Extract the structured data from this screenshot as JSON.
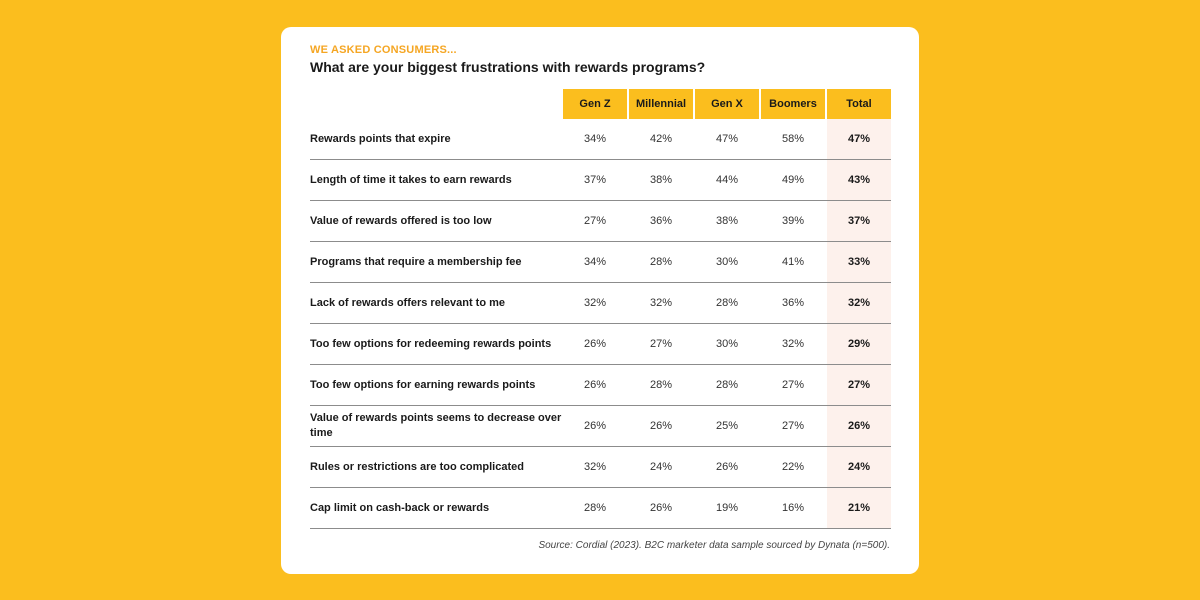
{
  "colors": {
    "background": "#FBBE1E",
    "header_fill": "#FBBE1E",
    "eyebrow": "#F5A623",
    "total_column_fill": "#FDF1EC"
  },
  "card": {
    "eyebrow": "WE ASKED CONSUMERS...",
    "headline": "What are your biggest frustrations with rewards programs?",
    "source": "Source: Cordial (2023). B2C marketer data sample sourced by Dynata (n=500)."
  },
  "chart_data": {
    "type": "table",
    "title": "What are your biggest frustrations with rewards programs?",
    "columns": [
      "Gen Z",
      "Millennial",
      "Gen X",
      "Boomers",
      "Total"
    ],
    "rows": [
      {
        "label": "Rewards points that expire",
        "values": [
          "34%",
          "42%",
          "47%",
          "58%",
          "47%"
        ]
      },
      {
        "label": "Length of time it takes to earn rewards",
        "values": [
          "37%",
          "38%",
          "44%",
          "49%",
          "43%"
        ]
      },
      {
        "label": "Value of rewards offered is too low",
        "values": [
          "27%",
          "36%",
          "38%",
          "39%",
          "37%"
        ]
      },
      {
        "label": "Programs that require a membership fee",
        "values": [
          "34%",
          "28%",
          "30%",
          "41%",
          "33%"
        ]
      },
      {
        "label": "Lack of rewards offers relevant to me",
        "values": [
          "32%",
          "32%",
          "28%",
          "36%",
          "32%"
        ]
      },
      {
        "label": "Too few options for redeeming rewards points",
        "values": [
          "26%",
          "27%",
          "30%",
          "32%",
          "29%"
        ]
      },
      {
        "label": "Too few options for earning rewards points",
        "values": [
          "26%",
          "28%",
          "28%",
          "27%",
          "27%"
        ]
      },
      {
        "label": "Value of rewards points seems to decrease over time",
        "values": [
          "26%",
          "26%",
          "25%",
          "27%",
          "26%"
        ]
      },
      {
        "label": "Rules or restrictions are too complicated",
        "values": [
          "32%",
          "24%",
          "26%",
          "22%",
          "24%"
        ]
      },
      {
        "label": "Cap limit on cash-back or rewards",
        "values": [
          "28%",
          "26%",
          "19%",
          "16%",
          "21%"
        ]
      }
    ]
  }
}
